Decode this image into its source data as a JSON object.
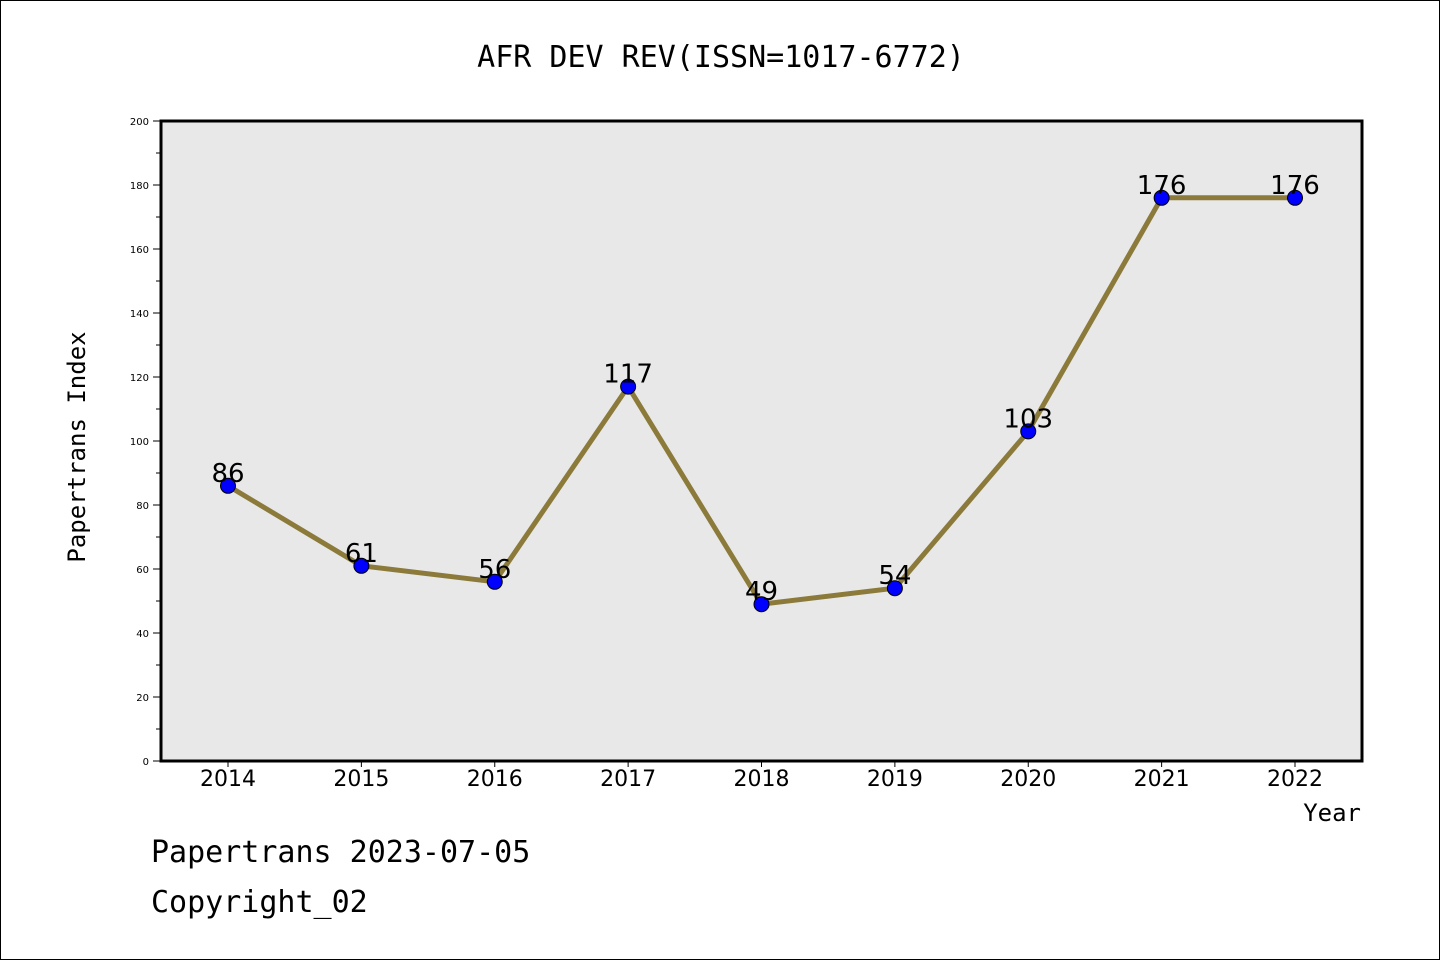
{
  "chart_data": {
    "type": "line",
    "title": "AFR DEV REV(ISSN=1017-6772)",
    "xlabel": "Year",
    "ylabel": "Papertrans Index",
    "categories": [
      "2014",
      "2015",
      "2016",
      "2017",
      "2018",
      "2019",
      "2020",
      "2021",
      "2022"
    ],
    "values": [
      86,
      61,
      56,
      117,
      49,
      54,
      103,
      176,
      176
    ],
    "data_labels": [
      "86",
      "61",
      "56",
      "117",
      "49",
      "54",
      "103",
      "176",
      "176"
    ],
    "ylim": [
      0,
      200
    ],
    "yticks": [
      0,
      20,
      40,
      60,
      80,
      100,
      120,
      140,
      160,
      180,
      200
    ],
    "ytick_labels": [
      "0",
      "20",
      "40",
      "60",
      "80",
      "100",
      "120",
      "140",
      "160",
      "180",
      "200"
    ],
    "grid": false,
    "colors": {
      "line": "#8b7a3a",
      "marker": "#0000ff",
      "plot_background": "#e8e8e8"
    }
  },
  "footer": {
    "line1": "Papertrans 2023-07-05",
    "line2": "Copyright_02"
  }
}
